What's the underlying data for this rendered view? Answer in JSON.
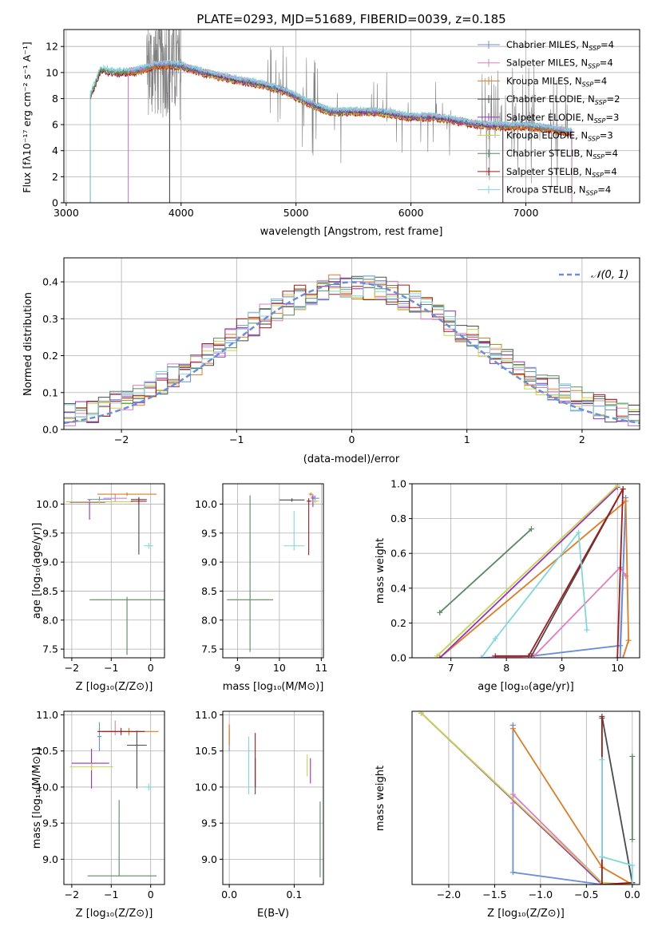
{
  "colors": {
    "chabrier_miles": "#6a8fd8",
    "salpeter_miles": "#e07cc0",
    "kroupa_miles": "#e07b22",
    "chabrier_elodie": "#4a4a4a",
    "salpeter_elodie": "#9b2fc2",
    "kroupa_elodie": "#c6d44a",
    "chabrier_stelib": "#5a8a60",
    "salpeter_stelib": "#a31a1a",
    "kroupa_stelib": "#7fd8dc",
    "data_gray": "#808080",
    "gaussian": "#6a8fd8",
    "grid": "#b0b0b0"
  },
  "chart_data": [
    {
      "id": "spectrum",
      "type": "line",
      "title": "PLATE=0293, MJD=51689, FIBERID=0039, z=0.185",
      "xlabel": "wavelength [Angstrom, rest frame]",
      "ylabel": "Flux [fλ10⁻¹⁷ erg cm⁻² s⁻¹ A⁻¹]",
      "xlim": [
        2980,
        7990
      ],
      "ylim": [
        0,
        13.3
      ],
      "xticks": [
        3000,
        4000,
        5000,
        6000,
        7000
      ],
      "yticks": [
        0,
        2,
        4,
        6,
        8,
        10,
        12
      ],
      "legend_position": "top-right",
      "legend": [
        {
          "key": "chabrier_miles",
          "label": "Chabrier MILES, N",
          "sub": "SSP",
          "suffix": "=4"
        },
        {
          "key": "salpeter_miles",
          "label": "Salpeter MILES, N",
          "sub": "SSP",
          "suffix": "=4"
        },
        {
          "key": "kroupa_miles",
          "label": "Kroupa MILES, N",
          "sub": "SSP",
          "suffix": "=4"
        },
        {
          "key": "chabrier_elodie",
          "label": "Chabrier ELODIE, N",
          "sub": "SSP",
          "suffix": "=2"
        },
        {
          "key": "salpeter_elodie",
          "label": "Salpeter ELODIE, N",
          "sub": "SSP",
          "suffix": "=3"
        },
        {
          "key": "kroupa_elodie",
          "label": "Kroupa ELODIE, N",
          "sub": "SSP",
          "suffix": "=3"
        },
        {
          "key": "chabrier_stelib",
          "label": "Chabrier STELIB, N",
          "sub": "SSP",
          "suffix": "=4"
        },
        {
          "key": "salpeter_stelib",
          "label": "Salpeter STELIB, N",
          "sub": "SSP",
          "suffix": "=4"
        },
        {
          "key": "kroupa_stelib",
          "label": "Kroupa STELIB, N",
          "sub": "SSP",
          "suffix": "=4"
        }
      ],
      "continuum": {
        "x": [
          3210,
          3300,
          3450,
          3600,
          3800,
          3900,
          4000,
          4200,
          4500,
          4700,
          4900,
          5100,
          5300,
          5500,
          5700,
          6000,
          6200,
          6400,
          6600,
          6800,
          7000,
          7200,
          7400
        ],
        "y": [
          8.2,
          10.2,
          10.0,
          10.1,
          10.6,
          10.6,
          10.5,
          10.0,
          9.4,
          9.1,
          8.6,
          7.7,
          7.0,
          7.0,
          7.0,
          6.6,
          6.6,
          6.3,
          6.0,
          5.9,
          5.9,
          5.7,
          5.4
        ]
      }
    },
    {
      "id": "residuals",
      "type": "histogram",
      "xlabel": "(data-model)/error",
      "ylabel": "Normed distribution",
      "xlim": [
        -2.5,
        2.5
      ],
      "ylim": [
        0,
        0.465
      ],
      "xticks": [
        -2,
        -1,
        0,
        1,
        2
      ],
      "yticks": [
        0.0,
        0.1,
        0.2,
        0.3,
        0.4
      ],
      "legend_position": "top-right",
      "gaussian_label": "𝒩(0, 1)",
      "bin_width": 0.1
    },
    {
      "id": "age_vs_Z",
      "type": "errorbar",
      "xlabel": "Z [log₁₀(Z/Z⊙)]",
      "ylabel": "age  [log₁₀(age/yr)]",
      "xlim": [
        -2.2,
        0.35
      ],
      "ylim": [
        7.35,
        10.35
      ],
      "xticks": [
        -2,
        -1,
        0
      ],
      "yticks": [
        7.5,
        8.0,
        8.5,
        9.0,
        9.5,
        10.0
      ],
      "points": [
        {
          "key": "chabrier_miles",
          "x": -1.3,
          "xerr": [
            0.3,
            0.3
          ],
          "y": 10.08,
          "yerr": [
            0.05,
            0.05
          ]
        },
        {
          "key": "salpeter_miles",
          "x": -0.9,
          "xerr": [
            0.3,
            0.3
          ],
          "y": 10.1,
          "yerr": [
            0.05,
            0.08
          ]
        },
        {
          "key": "kroupa_miles",
          "x": -0.6,
          "xerr": [
            0.75,
            0.75
          ],
          "y": 10.17,
          "yerr": [
            0.03,
            0.03
          ]
        },
        {
          "key": "chabrier_elodie",
          "x": -0.3,
          "xerr": [
            0.2,
            0.2
          ],
          "y": 10.08,
          "yerr": [
            0.95,
            0.04
          ]
        },
        {
          "key": "salpeter_elodie",
          "x": -1.55,
          "xerr": [
            0.5,
            0.4
          ],
          "y": 10.03,
          "yerr": [
            0.3,
            0.05
          ]
        },
        {
          "key": "kroupa_elodie",
          "x": -1.3,
          "xerr": [
            0.85,
            0.85
          ],
          "y": 10.04,
          "yerr": [
            0.03,
            0.03
          ]
        },
        {
          "key": "chabrier_stelib",
          "x": -0.6,
          "xerr": [
            0.95,
            0.95
          ],
          "y": 8.35,
          "yerr": [
            0.95,
            0.05
          ]
        },
        {
          "key": "salpeter_stelib",
          "x": -0.3,
          "xerr": [
            0.2,
            0.2
          ],
          "y": 10.05,
          "yerr": [
            0.05,
            0.05
          ]
        },
        {
          "key": "kroupa_stelib",
          "x": -0.05,
          "xerr": [
            0.12,
            0.12
          ],
          "y": 9.28,
          "yerr": [
            0.05,
            0.05
          ]
        }
      ]
    },
    {
      "id": "age_vs_mass",
      "type": "errorbar",
      "xlabel": "mass [log₁₀(M/M⊙)]",
      "ylabel": "",
      "xlim": [
        8.65,
        11.05
      ],
      "ylim": [
        7.35,
        10.35
      ],
      "xticks": [
        9,
        10,
        11
      ],
      "yticks": [
        7.5,
        8.0,
        8.5,
        9.0,
        9.5,
        10.0
      ],
      "points": [
        {
          "key": "chabrier_miles",
          "x": 10.85,
          "xerr": [
            0.1,
            0.1
          ],
          "y": 10.1,
          "yerr": [
            0.05,
            0.05
          ]
        },
        {
          "key": "salpeter_miles",
          "x": 10.8,
          "xerr": [
            0.05,
            0.05
          ],
          "y": 10.12,
          "yerr": [
            0.05,
            0.05
          ]
        },
        {
          "key": "kroupa_miles",
          "x": 10.75,
          "xerr": [
            0.05,
            0.05
          ],
          "y": 10.17,
          "yerr": [
            0.03,
            0.03
          ]
        },
        {
          "key": "chabrier_elodie",
          "x": 10.3,
          "xerr": [
            0.3,
            0.3
          ],
          "y": 10.07,
          "yerr": [
            0.03,
            0.03
          ]
        },
        {
          "key": "salpeter_elodie",
          "x": 10.8,
          "xerr": [
            0.1,
            0.1
          ],
          "y": 10.05,
          "yerr": [
            0.1,
            0.1
          ]
        },
        {
          "key": "kroupa_elodie",
          "x": 10.85,
          "xerr": [
            0.1,
            0.1
          ],
          "y": 10.05,
          "yerr": [
            0.03,
            0.03
          ]
        },
        {
          "key": "chabrier_stelib",
          "x": 9.3,
          "xerr": [
            0.55,
            0.55
          ],
          "y": 8.35,
          "yerr": [
            0.9,
            1.8
          ]
        },
        {
          "key": "salpeter_stelib",
          "x": 10.7,
          "xerr": [
            0.05,
            0.05
          ],
          "y": 10.05,
          "yerr": [
            0.93,
            0.05
          ]
        },
        {
          "key": "kroupa_stelib",
          "x": 10.35,
          "xerr": [
            0.25,
            0.25
          ],
          "y": 9.28,
          "yerr": [
            0.08,
            0.6
          ]
        }
      ]
    },
    {
      "id": "weight_vs_age",
      "type": "line",
      "xlabel": "age  [log₁₀(age/yr)]",
      "ylabel": "mass weight",
      "xlim": [
        6.3,
        10.4
      ],
      "ylim": [
        0,
        1.0
      ],
      "xticks": [
        7,
        8,
        9,
        10
      ],
      "yticks": [
        0.0,
        0.2,
        0.4,
        0.6,
        0.8,
        1.0
      ],
      "series": [
        {
          "key": "chabrier_miles",
          "x": [
            7.55,
            8.45,
            10.05,
            10.15,
            10.05
          ],
          "y": [
            0.0,
            0.01,
            0.07,
            0.92,
            0.0
          ]
        },
        {
          "key": "salpeter_miles",
          "x": [
            7.75,
            8.5,
            10.05,
            10.15
          ],
          "y": [
            0.0,
            0.01,
            0.52,
            0.47
          ]
        },
        {
          "key": "kroupa_miles",
          "x": [
            6.8,
            10.15,
            10.2,
            10.1
          ],
          "y": [
            0.0,
            0.9,
            0.1,
            0.0
          ]
        },
        {
          "key": "chabrier_elodie",
          "x": [
            8.45,
            10.1
          ],
          "y": [
            0.01,
            0.97
          ]
        },
        {
          "key": "salpeter_elodie",
          "x": [
            6.8,
            10.0
          ],
          "y": [
            0.0,
            0.98
          ]
        },
        {
          "key": "kroupa_elodie",
          "x": [
            6.75,
            10.0
          ],
          "y": [
            0.01,
            0.99
          ]
        },
        {
          "key": "chabrier_stelib",
          "x": [
            6.8,
            8.45
          ],
          "y": [
            0.26,
            0.74
          ]
        },
        {
          "key": "salpeter_stelib",
          "x": [
            7.8,
            8.4,
            10.1,
            10.0
          ],
          "y": [
            0.01,
            0.01,
            0.97,
            0.0
          ]
        },
        {
          "key": "kroupa_stelib",
          "x": [
            7.55,
            7.8,
            9.3,
            9.45
          ],
          "y": [
            0.0,
            0.11,
            0.72,
            0.16
          ]
        }
      ]
    },
    {
      "id": "mass_vs_Z",
      "type": "errorbar",
      "xlabel": "Z [log₁₀(Z/Z⊙)]",
      "ylabel": "mass [log₁₀(M/M⊙)]",
      "xlim": [
        -2.2,
        0.35
      ],
      "ylim": [
        8.65,
        11.05
      ],
      "xticks": [
        -2,
        -1,
        0
      ],
      "yticks": [
        9.0,
        9.5,
        10.0,
        10.5,
        11.0
      ],
      "points": [
        {
          "key": "chabrier_miles",
          "x": -1.3,
          "xerr": [
            0.05,
            0.05
          ],
          "y": 10.7,
          "yerr": [
            0.2,
            0.2
          ]
        },
        {
          "key": "salpeter_miles",
          "x": -0.9,
          "xerr": [
            0.3,
            0.3
          ],
          "y": 10.77,
          "yerr": [
            0.05,
            0.15
          ]
        },
        {
          "key": "kroupa_miles",
          "x": -0.55,
          "xerr": [
            0.75,
            0.75
          ],
          "y": 10.77,
          "yerr": [
            0.05,
            0.05
          ]
        },
        {
          "key": "chabrier_elodie",
          "x": -0.35,
          "xerr": [
            0.25,
            0.25
          ],
          "y": 10.58,
          "yerr": [
            0.6,
            0.2
          ]
        },
        {
          "key": "salpeter_elodie",
          "x": -1.5,
          "xerr": [
            0.5,
            0.45
          ],
          "y": 10.33,
          "yerr": [
            0.35,
            0.2
          ]
        },
        {
          "key": "kroupa_elodie",
          "x": -1.5,
          "xerr": [
            0.55,
            0.55
          ],
          "y": 10.28,
          "yerr": [
            0.05,
            0.05
          ]
        },
        {
          "key": "chabrier_stelib",
          "x": -0.8,
          "xerr": [
            0.8,
            0.95
          ],
          "y": 8.77,
          "yerr": [
            0.0,
            1.05
          ]
        },
        {
          "key": "salpeter_stelib",
          "x": -0.75,
          "xerr": [
            0.6,
            0.6
          ],
          "y": 10.77,
          "yerr": [
            0.05,
            0.05
          ]
        },
        {
          "key": "kroupa_stelib",
          "x": -0.05,
          "xerr": [
            0.12,
            0.12
          ],
          "y": 10.0,
          "yerr": [
            0.05,
            0.05
          ]
        }
      ]
    },
    {
      "id": "mass_vs_ebv",
      "type": "errorbar",
      "xlabel": "E(B-V)",
      "ylabel": "",
      "xlim": [
        -0.01,
        0.145
      ],
      "ylim": [
        8.65,
        11.05
      ],
      "xticks": [
        0.0,
        0.1
      ],
      "yticks": [
        9.0,
        9.5,
        10.0,
        10.5,
        11.0
      ],
      "points": [
        {
          "key": "chabrier_miles",
          "x": 0.0,
          "xerr": [
            0.0,
            0.0
          ],
          "y": 10.7,
          "yerr": [
            0.2,
            0.1
          ]
        },
        {
          "key": "salpeter_miles",
          "x": 0.0,
          "xerr": [
            0.0,
            0.0
          ],
          "y": 10.75,
          "yerr": [
            0.15,
            0.1
          ]
        },
        {
          "key": "kroupa_miles",
          "x": 0.0,
          "xerr": [
            0.0,
            0.0
          ],
          "y": 10.72,
          "yerr": [
            0.15,
            0.15
          ]
        },
        {
          "key": "chabrier_elodie",
          "x": 0.04,
          "xerr": [
            0.0,
            0.0
          ],
          "y": 10.3,
          "yerr": [
            0.4,
            0.1
          ]
        },
        {
          "key": "salpeter_elodie",
          "x": 0.125,
          "xerr": [
            0.0,
            0.0
          ],
          "y": 10.3,
          "yerr": [
            0.25,
            0.1
          ]
        },
        {
          "key": "kroupa_elodie",
          "x": 0.12,
          "xerr": [
            0.0,
            0.0
          ],
          "y": 10.3,
          "yerr": [
            0.15,
            0.15
          ]
        },
        {
          "key": "chabrier_stelib",
          "x": 0.14,
          "xerr": [
            0.0,
            0.0
          ],
          "y": 9.3,
          "yerr": [
            0.55,
            0.5
          ]
        },
        {
          "key": "salpeter_stelib",
          "x": 0.04,
          "xerr": [
            0.0,
            0.0
          ],
          "y": 10.35,
          "yerr": [
            0.35,
            0.4
          ]
        },
        {
          "key": "kroupa_stelib",
          "x": 0.03,
          "xerr": [
            0.0,
            0.0
          ],
          "y": 10.3,
          "yerr": [
            0.4,
            0.4
          ]
        }
      ]
    },
    {
      "id": "weight_vs_Z",
      "type": "line",
      "xlabel": "Z [log₁₀(Z/Z⊙)]",
      "ylabel": "mass weight",
      "xlim": [
        -2.4,
        0.08
      ],
      "ylim": [
        0,
        1.0
      ],
      "xticks": [
        -2.0,
        -1.5,
        -1.0,
        -0.5,
        0.0
      ],
      "series": [
        {
          "key": "chabrier_miles",
          "x": [
            -1.3,
            -1.3,
            -0.33,
            0.0
          ],
          "y": [
            0.92,
            0.07,
            0.0,
            0.01
          ]
        },
        {
          "key": "salpeter_miles",
          "x": [
            -1.3,
            -1.3,
            -0.33,
            0.0
          ],
          "y": [
            0.47,
            0.52,
            0.01,
            0.0
          ]
        },
        {
          "key": "kroupa_miles",
          "x": [
            -1.3,
            -0.33,
            0.0,
            0.0
          ],
          "y": [
            0.9,
            0.1,
            0.0,
            0.0
          ]
        },
        {
          "key": "chabrier_elodie",
          "x": [
            -0.33,
            0.0
          ],
          "y": [
            0.97,
            0.01
          ]
        },
        {
          "key": "salpeter_elodie",
          "x": [
            -2.3,
            -0.33,
            0.0
          ],
          "y": [
            0.99,
            0.0,
            0.0
          ]
        },
        {
          "key": "kroupa_elodie",
          "x": [
            -2.3,
            -0.33,
            0.0
          ],
          "y": [
            0.99,
            0.01,
            0.0
          ]
        },
        {
          "key": "chabrier_stelib",
          "x": [
            0.0,
            0.0
          ],
          "y": [
            0.74,
            0.26
          ]
        },
        {
          "key": "salpeter_stelib",
          "x": [
            -0.33,
            -0.33,
            0.0
          ],
          "y": [
            0.96,
            0.0,
            0.01
          ]
        },
        {
          "key": "kroupa_stelib",
          "x": [
            -0.33,
            -0.33,
            0.0,
            0.0
          ],
          "y": [
            0.72,
            0.16,
            0.11,
            0.0
          ]
        }
      ]
    }
  ]
}
